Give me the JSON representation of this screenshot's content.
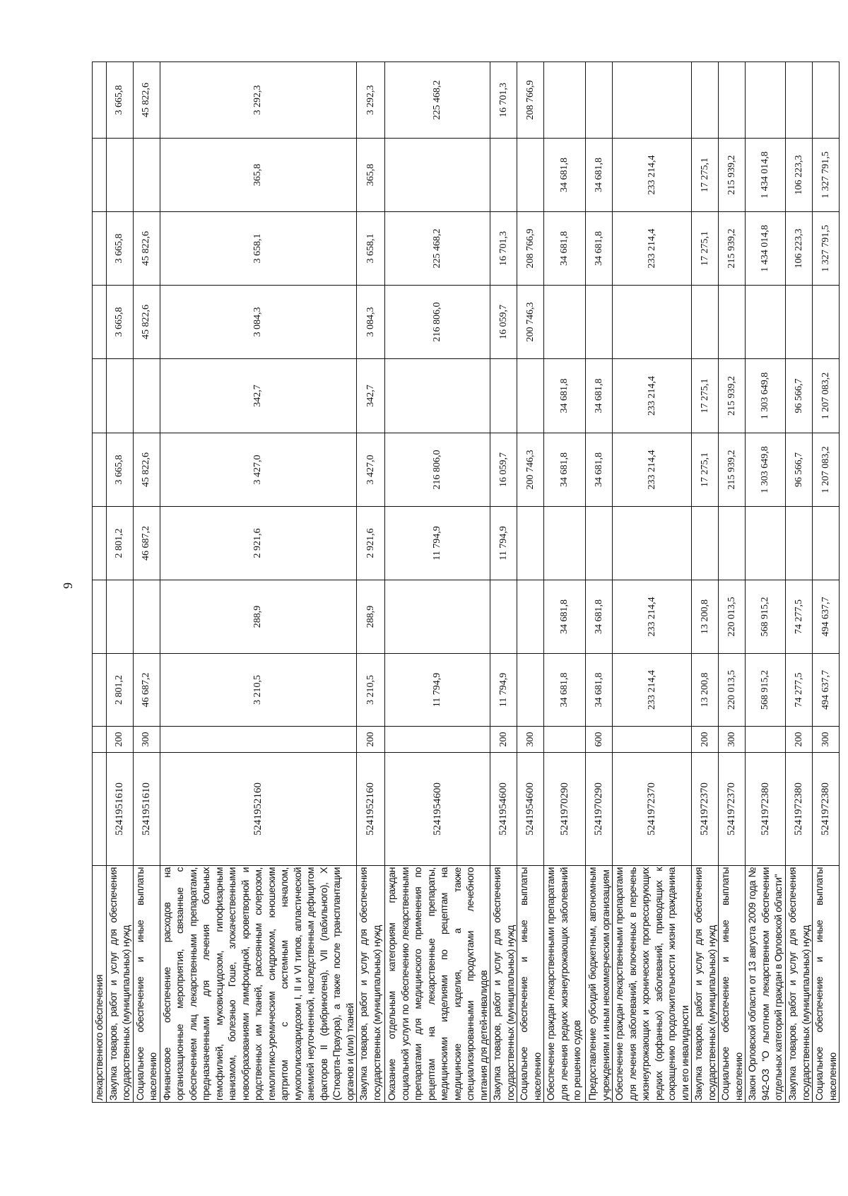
{
  "page_number": "9",
  "rows": [
    {
      "desc": "лекарственного обеспечения",
      "code": "",
      "vid": "",
      "vals": [
        "",
        "",
        "",
        "",
        "",
        "",
        "",
        "",
        ""
      ]
    },
    {
      "desc": "Закупка товаров, работ и услуг для обеспечения государственных (муниципальных) нужд",
      "code": "5241951610",
      "vid": "200",
      "vals": [
        "2 801,2",
        "",
        "2 801,2",
        "3 665,8",
        "",
        "3 665,8",
        "3 665,8",
        "",
        "3 665,8"
      ]
    },
    {
      "desc": "Социальное обеспечение и иные выплаты населению",
      "code": "5241951610",
      "vid": "300",
      "vals": [
        "46 687,2",
        "",
        "46 687,2",
        "45 822,6",
        "",
        "45 822,6",
        "45 822,6",
        "",
        "45 822,6"
      ]
    },
    {
      "desc": "Финансовое обеспечение расходов на организационные мероприятия, связанные с обеспечением лиц лекарственными препаратами, предназначенными для лечения больных гемофилией, муковисцидозом, гипофизарным нанизмом, болезнью Гоше, злокачественными новообразованиями лимфоидной, кроветворной и родственных им тканей, рассеянным склерозом, гемолитико-уремическим синдромом, юношеским артритом с системным началом, мукополисахаридозом I, II и VI типов, апластической анемией неуточненной, наследственным дефицитом факторов II (фибриногена), VII (лабильного), X (Стюарта-Прауэра), а также после трансплантации органов и (или) тканей",
      "code": "5241952160",
      "vid": "",
      "vals": [
        "3 210,5",
        "288,9",
        "2 921,6",
        "3 427,0",
        "342,7",
        "3 084,3",
        "3 658,1",
        "365,8",
        "3 292,3"
      ]
    },
    {
      "desc": "Закупка товаров, работ и услуг для обеспечения государственных (муниципальных) нужд",
      "code": "5241952160",
      "vid": "200",
      "vals": [
        "3 210,5",
        "288,9",
        "2 921,6",
        "3 427,0",
        "342,7",
        "3 084,3",
        "3 658,1",
        "365,8",
        "3 292,3"
      ]
    },
    {
      "desc": "Оказание отдельным категориям граждан социальной услуги по обеспечению лекарственными препаратами для медицинского применения по рецептам на лекарственные препараты, медицинскими изделиями по рецептам на медицинские изделия, а также специализированными продуктами лечебного питания для детей-инвалидов",
      "code": "5241954600",
      "vid": "",
      "vals": [
        "11 794,9",
        "",
        "11 794,9",
        "216 806,0",
        "",
        "216 806,0",
        "225 468,2",
        "",
        "225 468,2"
      ]
    },
    {
      "desc": "Закупка товаров, работ и услуг для обеспечения государственных (муниципальных) нужд",
      "code": "5241954600",
      "vid": "200",
      "vals": [
        "11 794,9",
        "",
        "11 794,9",
        "16 059,7",
        "",
        "16 059,7",
        "16 701,3",
        "",
        "16 701,3"
      ]
    },
    {
      "desc": "Социальное обеспечение и иные выплаты населению",
      "code": "5241954600",
      "vid": "300",
      "vals": [
        "",
        "",
        "",
        "200 746,3",
        "",
        "200 746,3",
        "208 766,9",
        "",
        "208 766,9"
      ]
    },
    {
      "desc": "Обеспечение граждан лекарственными препаратами для лечения редких жизнеугрожающих заболеваний по решению судов",
      "code": "5241970290",
      "vid": "",
      "vals": [
        "34 681,8",
        "34 681,8",
        "",
        "34 681,8",
        "34 681,8",
        "",
        "34 681,8",
        "34 681,8",
        ""
      ]
    },
    {
      "desc": "Предоставление субсидий бюджетным, автономным учреждениям и иным некоммерческим организациям",
      "code": "5241970290",
      "vid": "600",
      "vals": [
        "34 681,8",
        "34 681,8",
        "",
        "34 681,8",
        "34 681,8",
        "",
        "34 681,8",
        "34 681,8",
        ""
      ]
    },
    {
      "desc": "Обеспечение граждан лекарственными препаратами для лечения заболеваний, включенных в перечень жизнеугрожающих и хронических прогрессирующих редких (орфанных) заболеваний, приводящих к сокращению продолжительности жизни гражданина или его инвалидности",
      "code": "5241972370",
      "vid": "",
      "vals": [
        "233 214,4",
        "233 214,4",
        "",
        "233 214,4",
        "233 214,4",
        "",
        "233 214,4",
        "233 214,4",
        ""
      ]
    },
    {
      "desc": "Закупка товаров, работ и услуг для обеспечения государственных (муниципальных) нужд",
      "code": "5241972370",
      "vid": "200",
      "vals": [
        "13 200,8",
        "13 200,8",
        "",
        "17 275,1",
        "17 275,1",
        "",
        "17 275,1",
        "17 275,1",
        ""
      ]
    },
    {
      "desc": "Социальное обеспечение и иные выплаты населению",
      "code": "5241972370",
      "vid": "300",
      "vals": [
        "220 013,5",
        "220 013,5",
        "",
        "215 939,2",
        "215 939,2",
        "",
        "215 939,2",
        "215 939,2",
        ""
      ]
    },
    {
      "desc": "Закон Орловской области от 13 августа 2009 года № 942-ОЗ \"О льготном лекарственном обеспечении отдельных категорий граждан в Орловской области\"",
      "code": "5241972380",
      "vid": "",
      "vals": [
        "568 915,2",
        "568 915,2",
        "",
        "1 303 649,8",
        "1 303 649,8",
        "",
        "1 434 014,8",
        "1 434 014,8",
        ""
      ]
    },
    {
      "desc": "Закупка товаров, работ и услуг для обеспечения государственных (муниципальных) нужд",
      "code": "5241972380",
      "vid": "200",
      "vals": [
        "74 277,5",
        "74 277,5",
        "",
        "96 566,7",
        "96 566,7",
        "",
        "106 223,3",
        "106 223,3",
        ""
      ]
    },
    {
      "desc": "Социальное обеспечение и иные выплаты населению",
      "code": "5241972380",
      "vid": "300",
      "vals": [
        "494 637,7",
        "494 637,7",
        "",
        "1 207 083,2",
        "1 207 083,2",
        "",
        "1 327 791,5",
        "1 327 791,5",
        ""
      ]
    }
  ]
}
